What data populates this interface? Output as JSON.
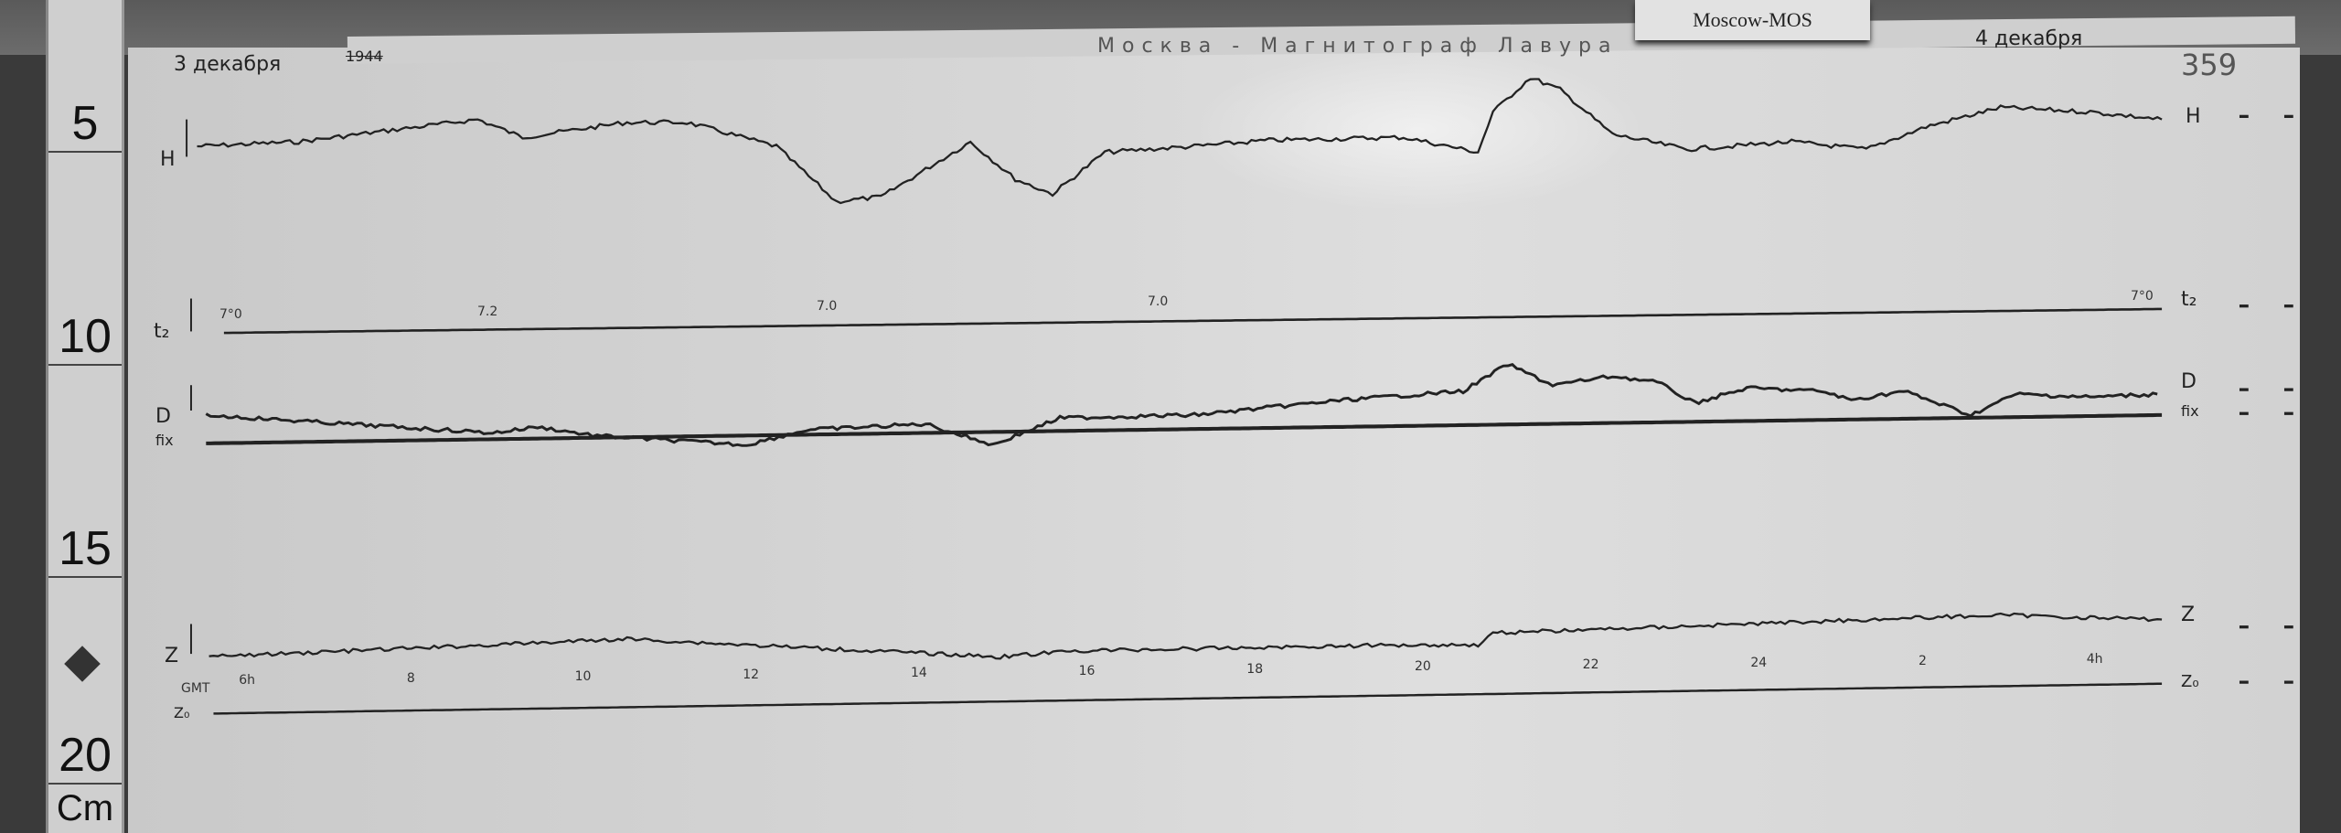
{
  "ruler": {
    "marks": [
      "5",
      "10",
      "15",
      "20"
    ],
    "unit": "Cm"
  },
  "label_card": "Moscow-MOS",
  "header": {
    "date_left": "3 декабря",
    "year": "1944",
    "title": "Москва - Магнитограф Лавура",
    "date_right": "4 декабря",
    "sheet_number": "359"
  },
  "channels": {
    "h": "H",
    "t2": "t₂",
    "d": "D",
    "d_base": "fix",
    "z": "Z",
    "z0": "Z₀",
    "time": "GMT"
  },
  "temperature_labels": [
    "7°0",
    "7.2",
    "7.0",
    "7.0",
    "7°0"
  ],
  "hour_labels": [
    "6h",
    "8",
    "10",
    "12",
    "14",
    "16",
    "18",
    "20",
    "22",
    "24",
    "2",
    "4h"
  ],
  "colors": {
    "paper": "#d6d6d6",
    "ink": "#222222",
    "background": "#3a3a3a"
  }
}
